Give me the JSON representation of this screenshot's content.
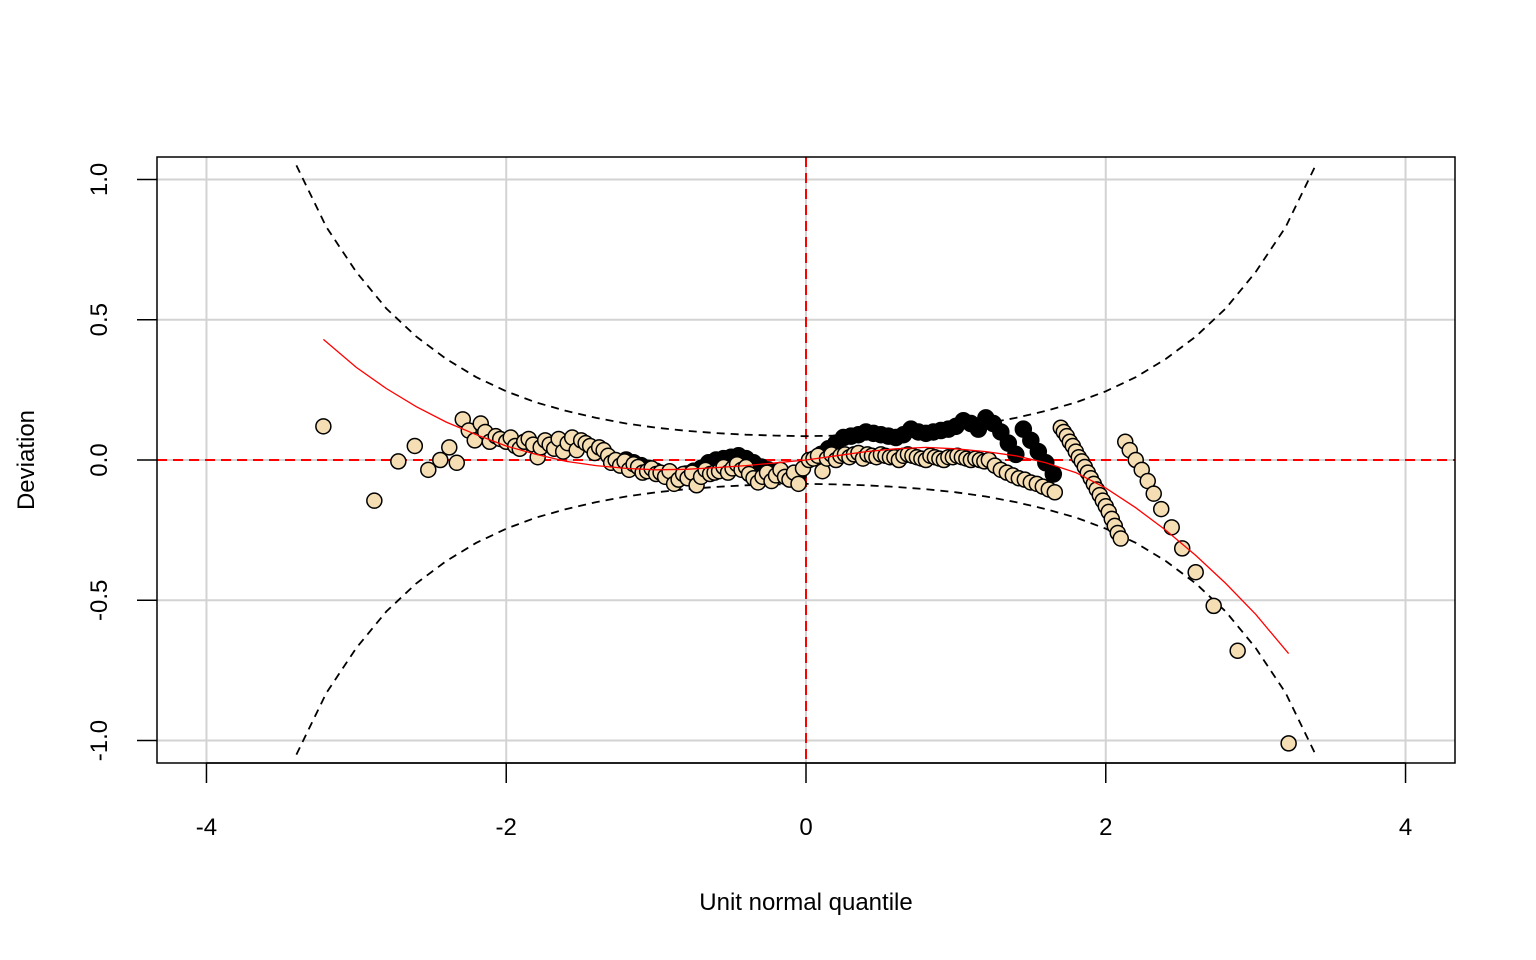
{
  "chart_data": {
    "type": "scatter",
    "title": "",
    "xlabel": "Unit normal quantile",
    "ylabel": "Deviation",
    "xlim": [
      -4.33,
      4.33
    ],
    "ylim": [
      -1.08,
      1.08
    ],
    "x_ticks": [
      -4,
      -2,
      0,
      2,
      4
    ],
    "x_tick_labels": [
      "-4",
      "-2",
      "0",
      "2",
      "4"
    ],
    "y_ticks": [
      -1.0,
      -0.5,
      0.0,
      0.5,
      1.0
    ],
    "y_tick_labels": [
      "-1.0",
      "-0.5",
      "0.0",
      "0.5",
      "1.0"
    ],
    "grid": true,
    "colors": {
      "point_fill": "#f5deb3",
      "point_stroke": "#000000",
      "reference_line": "#ff0000",
      "fit_curve": "#ff0000",
      "confidence_band": "#000000",
      "grid": "#d3d3d3"
    },
    "reference_lines": {
      "h": 0.0,
      "v": 0.0
    },
    "confidence_band": {
      "upper": [
        [
          -3.4,
          1.05
        ],
        [
          -3.2,
          0.83
        ],
        [
          -3.0,
          0.67
        ],
        [
          -2.8,
          0.54
        ],
        [
          -2.6,
          0.44
        ],
        [
          -2.4,
          0.36
        ],
        [
          -2.2,
          0.295
        ],
        [
          -2.0,
          0.245
        ],
        [
          -1.8,
          0.205
        ],
        [
          -1.6,
          0.175
        ],
        [
          -1.4,
          0.15
        ],
        [
          -1.2,
          0.13
        ],
        [
          -1.0,
          0.115
        ],
        [
          -0.8,
          0.104
        ],
        [
          -0.6,
          0.096
        ],
        [
          -0.4,
          0.09
        ],
        [
          -0.2,
          0.087
        ],
        [
          0.0,
          0.085
        ],
        [
          0.2,
          0.087
        ],
        [
          0.4,
          0.09
        ],
        [
          0.6,
          0.096
        ],
        [
          0.8,
          0.104
        ],
        [
          1.0,
          0.115
        ],
        [
          1.2,
          0.13
        ],
        [
          1.4,
          0.15
        ],
        [
          1.6,
          0.175
        ],
        [
          1.8,
          0.205
        ],
        [
          2.0,
          0.245
        ],
        [
          2.2,
          0.295
        ],
        [
          2.4,
          0.36
        ],
        [
          2.6,
          0.44
        ],
        [
          2.8,
          0.54
        ],
        [
          3.0,
          0.67
        ],
        [
          3.2,
          0.83
        ],
        [
          3.4,
          1.05
        ]
      ],
      "lower": [
        [
          -3.4,
          -1.05
        ],
        [
          -3.2,
          -0.83
        ],
        [
          -3.0,
          -0.67
        ],
        [
          -2.8,
          -0.54
        ],
        [
          -2.6,
          -0.44
        ],
        [
          -2.4,
          -0.36
        ],
        [
          -2.2,
          -0.295
        ],
        [
          -2.0,
          -0.245
        ],
        [
          -1.8,
          -0.205
        ],
        [
          -1.6,
          -0.175
        ],
        [
          -1.4,
          -0.15
        ],
        [
          -1.2,
          -0.13
        ],
        [
          -1.0,
          -0.115
        ],
        [
          -0.8,
          -0.104
        ],
        [
          -0.6,
          -0.096
        ],
        [
          -0.4,
          -0.09
        ],
        [
          -0.2,
          -0.087
        ],
        [
          0.0,
          -0.085
        ],
        [
          0.2,
          -0.087
        ],
        [
          0.4,
          -0.09
        ],
        [
          0.6,
          -0.096
        ],
        [
          0.8,
          -0.104
        ],
        [
          1.0,
          -0.115
        ],
        [
          1.2,
          -0.13
        ],
        [
          1.4,
          -0.15
        ],
        [
          1.6,
          -0.175
        ],
        [
          1.8,
          -0.205
        ],
        [
          2.0,
          -0.245
        ],
        [
          2.2,
          -0.295
        ],
        [
          2.4,
          -0.36
        ],
        [
          2.6,
          -0.44
        ],
        [
          2.8,
          -0.54
        ],
        [
          3.0,
          -0.67
        ],
        [
          3.2,
          -0.83
        ],
        [
          3.4,
          -1.05
        ]
      ]
    },
    "fit_curve": [
      [
        -3.22,
        0.43
      ],
      [
        -3.0,
        0.33
      ],
      [
        -2.8,
        0.255
      ],
      [
        -2.6,
        0.19
      ],
      [
        -2.4,
        0.135
      ],
      [
        -2.2,
        0.09
      ],
      [
        -2.0,
        0.05
      ],
      [
        -1.8,
        0.02
      ],
      [
        -1.6,
        -0.005
      ],
      [
        -1.4,
        -0.02
      ],
      [
        -1.2,
        -0.03
      ],
      [
        -1.0,
        -0.035
      ],
      [
        -0.8,
        -0.033
      ],
      [
        -0.6,
        -0.027
      ],
      [
        -0.4,
        -0.02
      ],
      [
        -0.2,
        -0.01
      ],
      [
        0.0,
        0.0
      ],
      [
        0.2,
        0.015
      ],
      [
        0.4,
        0.03
      ],
      [
        0.6,
        0.04
      ],
      [
        0.8,
        0.045
      ],
      [
        1.0,
        0.04
      ],
      [
        1.2,
        0.03
      ],
      [
        1.4,
        0.015
      ],
      [
        1.6,
        -0.01
      ],
      [
        1.8,
        -0.045
      ],
      [
        2.0,
        -0.1
      ],
      [
        2.2,
        -0.17
      ],
      [
        2.4,
        -0.25
      ],
      [
        2.6,
        -0.34
      ],
      [
        2.8,
        -0.44
      ],
      [
        3.0,
        -0.55
      ],
      [
        3.22,
        -0.69
      ]
    ],
    "points": [
      [
        -3.22,
        0.12
      ],
      [
        -2.88,
        -0.145
      ],
      [
        -2.72,
        -0.005
      ],
      [
        -2.61,
        0.05
      ],
      [
        -2.52,
        -0.035
      ],
      [
        -2.44,
        0.0
      ],
      [
        -2.38,
        0.045
      ],
      [
        -2.33,
        -0.01
      ],
      [
        -2.29,
        0.145
      ],
      [
        -2.25,
        0.105
      ],
      [
        -2.21,
        0.07
      ],
      [
        -2.17,
        0.13
      ],
      [
        -2.14,
        0.1
      ],
      [
        -2.11,
        0.065
      ],
      [
        -2.07,
        0.085
      ],
      [
        -2.04,
        0.075
      ],
      [
        -2.0,
        0.065
      ],
      [
        -1.97,
        0.08
      ],
      [
        -1.94,
        0.05
      ],
      [
        -1.91,
        0.04
      ],
      [
        -1.88,
        0.065
      ],
      [
        -1.85,
        0.075
      ],
      [
        -1.82,
        0.055
      ],
      [
        -1.79,
        0.01
      ],
      [
        -1.77,
        0.045
      ],
      [
        -1.74,
        0.07
      ],
      [
        -1.71,
        0.055
      ],
      [
        -1.68,
        0.04
      ],
      [
        -1.65,
        0.075
      ],
      [
        -1.62,
        0.03
      ],
      [
        -1.59,
        0.06
      ],
      [
        -1.56,
        0.08
      ],
      [
        -1.53,
        0.035
      ],
      [
        -1.5,
        0.07
      ],
      [
        -1.47,
        0.06
      ],
      [
        -1.44,
        0.05
      ],
      [
        -1.41,
        0.025
      ],
      [
        -1.38,
        0.045
      ],
      [
        -1.35,
        0.035
      ],
      [
        -1.32,
        0.015
      ],
      [
        -1.3,
        -0.01
      ],
      [
        -1.27,
        0.0
      ],
      [
        -1.24,
        -0.02
      ],
      [
        -1.21,
        -0.005
      ],
      [
        -1.18,
        -0.035
      ],
      [
        -1.15,
        -0.015
      ],
      [
        -1.12,
        -0.025
      ],
      [
        -1.09,
        -0.045
      ],
      [
        -1.06,
        -0.04
      ],
      [
        -1.03,
        -0.03
      ],
      [
        -1.0,
        -0.05
      ],
      [
        -0.97,
        -0.045
      ],
      [
        -0.94,
        -0.06
      ],
      [
        -0.91,
        -0.04
      ],
      [
        -0.88,
        -0.085
      ],
      [
        -0.85,
        -0.07
      ],
      [
        -0.82,
        -0.05
      ],
      [
        -0.79,
        -0.065
      ],
      [
        -0.76,
        -0.045
      ],
      [
        -0.73,
        -0.09
      ],
      [
        -0.7,
        -0.06
      ],
      [
        -0.67,
        -0.035
      ],
      [
        -0.64,
        -0.05
      ],
      [
        -0.61,
        -0.045
      ],
      [
        -0.58,
        -0.04
      ],
      [
        -0.55,
        -0.025
      ],
      [
        -0.52,
        -0.045
      ],
      [
        -0.49,
        -0.03
      ],
      [
        -0.46,
        -0.015
      ],
      [
        -0.43,
        -0.035
      ],
      [
        -0.4,
        -0.025
      ],
      [
        -0.38,
        -0.05
      ],
      [
        -0.35,
        -0.065
      ],
      [
        -0.32,
        -0.08
      ],
      [
        -0.29,
        -0.06
      ],
      [
        -0.26,
        -0.045
      ],
      [
        -0.23,
        -0.075
      ],
      [
        -0.2,
        -0.055
      ],
      [
        -0.17,
        -0.035
      ],
      [
        -0.14,
        -0.06
      ],
      [
        -0.11,
        -0.07
      ],
      [
        -0.08,
        -0.045
      ],
      [
        -0.05,
        -0.085
      ],
      [
        -0.02,
        -0.03
      ],
      [
        0.02,
        0.0
      ],
      [
        0.05,
        0.005
      ],
      [
        0.08,
        0.015
      ],
      [
        0.11,
        -0.04
      ],
      [
        0.14,
        0.005
      ],
      [
        0.17,
        0.02
      ],
      [
        0.2,
        0.0
      ],
      [
        0.23,
        0.015
      ],
      [
        0.26,
        0.02
      ],
      [
        0.29,
        0.01
      ],
      [
        0.32,
        0.02
      ],
      [
        0.35,
        0.025
      ],
      [
        0.38,
        0.005
      ],
      [
        0.41,
        0.02
      ],
      [
        0.44,
        0.015
      ],
      [
        0.47,
        0.01
      ],
      [
        0.5,
        0.02
      ],
      [
        0.53,
        0.015
      ],
      [
        0.56,
        0.01
      ],
      [
        0.59,
        0.01
      ],
      [
        0.62,
        0.0
      ],
      [
        0.65,
        0.015
      ],
      [
        0.68,
        0.02
      ],
      [
        0.71,
        0.015
      ],
      [
        0.74,
        0.01
      ],
      [
        0.77,
        0.005
      ],
      [
        0.8,
        0.0
      ],
      [
        0.83,
        0.015
      ],
      [
        0.86,
        0.01
      ],
      [
        0.89,
        0.005
      ],
      [
        0.92,
        0.0
      ],
      [
        0.95,
        0.01
      ],
      [
        0.98,
        0.01
      ],
      [
        1.01,
        0.015
      ],
      [
        1.04,
        0.01
      ],
      [
        1.07,
        0.005
      ],
      [
        1.1,
        0.0
      ],
      [
        1.13,
        0.005
      ],
      [
        1.16,
        0.0
      ],
      [
        1.19,
        -0.005
      ],
      [
        1.22,
        0.0
      ],
      [
        1.26,
        -0.02
      ],
      [
        1.3,
        -0.035
      ],
      [
        1.34,
        -0.045
      ],
      [
        1.38,
        -0.055
      ],
      [
        1.42,
        -0.065
      ],
      [
        1.46,
        -0.07
      ],
      [
        1.5,
        -0.08
      ],
      [
        1.54,
        -0.085
      ],
      [
        1.58,
        -0.095
      ],
      [
        1.62,
        -0.105
      ],
      [
        1.66,
        -0.115
      ],
      [
        1.7,
        0.115
      ],
      [
        1.72,
        0.1
      ],
      [
        1.74,
        0.085
      ],
      [
        1.76,
        0.065
      ],
      [
        1.78,
        0.05
      ],
      [
        1.8,
        0.03
      ],
      [
        1.82,
        0.01
      ],
      [
        1.84,
        -0.005
      ],
      [
        1.86,
        -0.025
      ],
      [
        1.88,
        -0.045
      ],
      [
        1.9,
        -0.065
      ],
      [
        1.92,
        -0.085
      ],
      [
        1.94,
        -0.105
      ],
      [
        1.96,
        -0.125
      ],
      [
        1.98,
        -0.145
      ],
      [
        2.0,
        -0.165
      ],
      [
        2.02,
        -0.185
      ],
      [
        2.04,
        -0.21
      ],
      [
        2.06,
        -0.235
      ],
      [
        2.08,
        -0.26
      ],
      [
        2.1,
        -0.28
      ],
      [
        2.13,
        0.065
      ],
      [
        2.16,
        0.035
      ],
      [
        2.2,
        0.0
      ],
      [
        2.24,
        -0.035
      ],
      [
        2.28,
        -0.075
      ],
      [
        2.32,
        -0.12
      ],
      [
        2.37,
        -0.175
      ],
      [
        2.44,
        -0.24
      ],
      [
        2.51,
        -0.315
      ],
      [
        2.6,
        -0.4
      ],
      [
        2.72,
        -0.52
      ],
      [
        2.88,
        -0.68
      ],
      [
        3.22,
        -1.01
      ]
    ],
    "dense_markers": [
      [
        -1.2,
        0.0
      ],
      [
        -1.15,
        -0.01
      ],
      [
        -1.1,
        -0.02
      ],
      [
        -1.05,
        -0.03
      ],
      [
        -1.0,
        -0.04
      ],
      [
        -0.95,
        -0.05
      ],
      [
        -0.9,
        -0.06
      ],
      [
        -0.85,
        -0.06
      ],
      [
        -0.8,
        -0.05
      ],
      [
        -0.75,
        -0.04
      ],
      [
        -0.7,
        -0.03
      ],
      [
        -0.65,
        -0.01
      ],
      [
        -0.6,
        0.0
      ],
      [
        -0.55,
        0.005
      ],
      [
        -0.5,
        0.01
      ],
      [
        -0.45,
        0.015
      ],
      [
        -0.4,
        0.005
      ],
      [
        -0.35,
        -0.01
      ],
      [
        -0.3,
        -0.025
      ],
      [
        -0.25,
        -0.035
      ],
      [
        -0.2,
        -0.045
      ],
      [
        -0.15,
        -0.05
      ],
      [
        -0.1,
        -0.055
      ],
      [
        -0.05,
        -0.05
      ],
      [
        0.1,
        0.02
      ],
      [
        0.15,
        0.04
      ],
      [
        0.2,
        0.06
      ],
      [
        0.25,
        0.08
      ],
      [
        0.3,
        0.085
      ],
      [
        0.35,
        0.09
      ],
      [
        0.4,
        0.1
      ],
      [
        0.45,
        0.095
      ],
      [
        0.5,
        0.09
      ],
      [
        0.55,
        0.085
      ],
      [
        0.6,
        0.08
      ],
      [
        0.65,
        0.09
      ],
      [
        0.7,
        0.11
      ],
      [
        0.75,
        0.1
      ],
      [
        0.8,
        0.095
      ],
      [
        0.85,
        0.1
      ],
      [
        0.9,
        0.105
      ],
      [
        0.95,
        0.11
      ],
      [
        1.0,
        0.12
      ],
      [
        1.05,
        0.14
      ],
      [
        1.1,
        0.13
      ],
      [
        1.15,
        0.11
      ],
      [
        1.2,
        0.15
      ],
      [
        1.25,
        0.13
      ],
      [
        1.3,
        0.1
      ],
      [
        1.35,
        0.06
      ],
      [
        1.4,
        0.02
      ],
      [
        1.45,
        0.11
      ],
      [
        1.5,
        0.07
      ],
      [
        1.55,
        0.03
      ],
      [
        1.6,
        -0.01
      ],
      [
        1.65,
        -0.05
      ]
    ]
  }
}
